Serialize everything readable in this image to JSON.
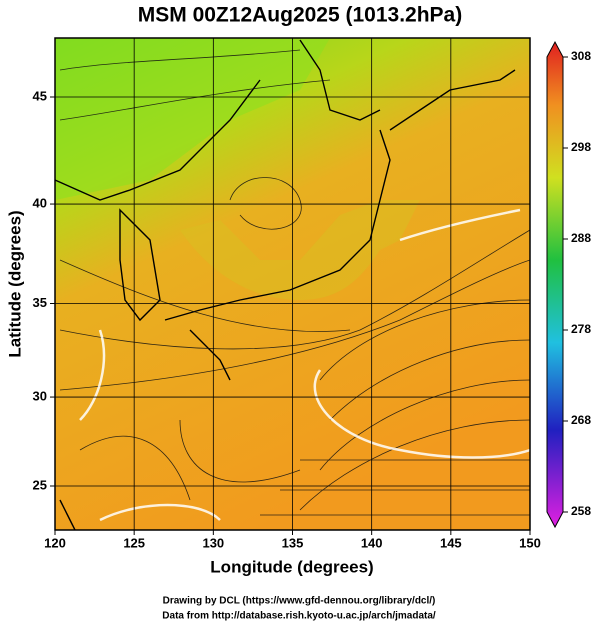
{
  "header": {
    "title": "MSM 00Z12Aug2025 (1013.2hPa)"
  },
  "axes": {
    "x_label": "Longitude (degrees)",
    "y_label": "Latitude  (degrees)",
    "x_ticks": [
      120,
      125,
      130,
      135,
      140,
      145,
      150
    ],
    "y_ticks": [
      25,
      30,
      35,
      40,
      45
    ]
  },
  "colorbar": {
    "ticks": [
      258,
      268,
      278,
      288,
      298,
      308
    ]
  },
  "credits": [
    "Drawing by DCL (https://www.gfd-dennou.org/library/dcl/)",
    "Data from http://database.rish.kyoto-u.ac.jp/arch/jmadata/"
  ]
}
